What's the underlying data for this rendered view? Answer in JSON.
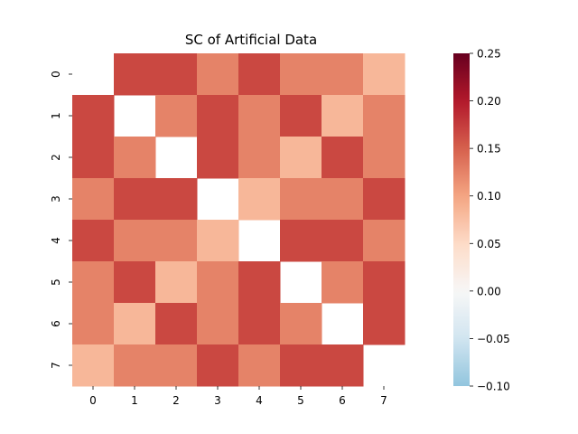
{
  "chart_data": {
    "type": "heatmap",
    "title": "SC of Artificial Data",
    "xlabel": "",
    "ylabel": "",
    "x_categories": [
      "0",
      "1",
      "2",
      "3",
      "4",
      "5",
      "6",
      "7"
    ],
    "y_categories": [
      "0",
      "1",
      "2",
      "3",
      "4",
      "5",
      "6",
      "7"
    ],
    "values": [
      [
        0.0,
        0.167,
        0.167,
        0.125,
        0.167,
        0.125,
        0.125,
        0.083
      ],
      [
        0.167,
        0.0,
        0.125,
        0.167,
        0.125,
        0.167,
        0.083,
        0.125
      ],
      [
        0.167,
        0.125,
        0.0,
        0.167,
        0.125,
        0.083,
        0.167,
        0.125
      ],
      [
        0.125,
        0.167,
        0.167,
        0.0,
        0.083,
        0.125,
        0.125,
        0.167
      ],
      [
        0.167,
        0.125,
        0.125,
        0.083,
        0.0,
        0.167,
        0.167,
        0.125
      ],
      [
        0.125,
        0.167,
        0.083,
        0.125,
        0.167,
        0.0,
        0.125,
        0.167
      ],
      [
        0.125,
        0.083,
        0.167,
        0.125,
        0.167,
        0.125,
        0.0,
        0.167
      ],
      [
        0.083,
        0.125,
        0.125,
        0.167,
        0.125,
        0.167,
        0.167,
        0.0
      ]
    ],
    "colorbar": {
      "vmin": -0.1,
      "vmax": 0.25,
      "ticks": [
        -0.1,
        -0.05,
        0.0,
        0.05,
        0.1,
        0.15,
        0.2,
        0.25
      ],
      "tick_labels": [
        "−0.10",
        "−0.05",
        "0.00",
        "0.05",
        "0.10",
        "0.15",
        "0.20",
        "0.25"
      ],
      "colormap": "RdBu_r",
      "center": 0.0
    },
    "diagonal_masked": true
  }
}
